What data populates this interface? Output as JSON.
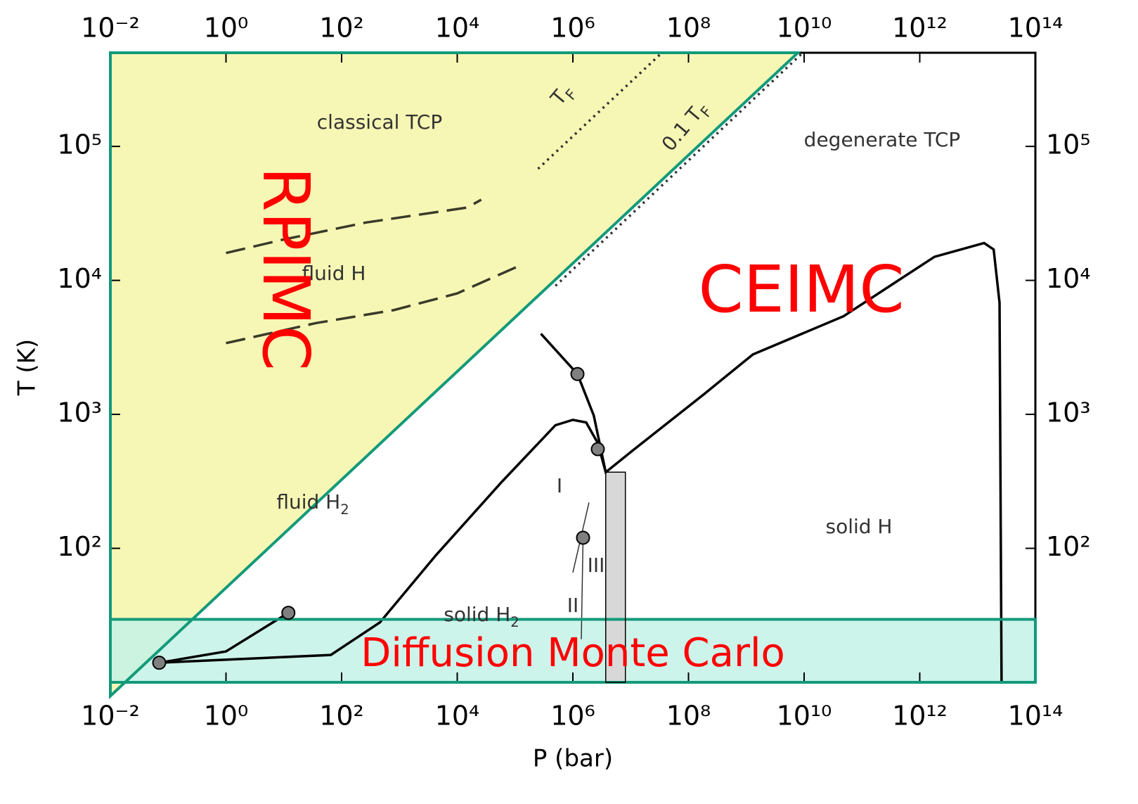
{
  "chart_data": {
    "type": "line",
    "xlabel": "P (bar)",
    "ylabel": "T (K)",
    "xscale": "log",
    "yscale": "log",
    "xlim": [
      0.01,
      100000000000000
    ],
    "ylim": [
      10,
      500000
    ],
    "xticks": [
      {
        "value": 0.01,
        "label": "10⁻²"
      },
      {
        "value": 1,
        "label": "10⁰"
      },
      {
        "value": 100,
        "label": "10²"
      },
      {
        "value": 10000,
        "label": "10⁴"
      },
      {
        "value": 1000000,
        "label": "10⁶"
      },
      {
        "value": 100000000,
        "label": "10⁸"
      },
      {
        "value": 10000000000,
        "label": "10¹⁰"
      },
      {
        "value": 1000000000000,
        "label": "10¹²"
      },
      {
        "value": 100000000000000,
        "label": "10¹⁴"
      }
    ],
    "yticks": [
      {
        "value": 100,
        "label": "10²"
      },
      {
        "value": 1000,
        "label": "10³"
      },
      {
        "value": 10000,
        "label": "10⁴"
      },
      {
        "value": 100000,
        "label": "10⁵"
      }
    ],
    "regions": [
      {
        "fill": "#f7f7b5",
        "stroke": "#129a7a",
        "x": [
          0.01,
          0.01,
          7800000000
        ],
        "y": [
          7.9,
          500000,
          500000
        ]
      },
      {
        "fill": "#c4f2e6",
        "stroke": "#129a7a",
        "x": [
          0.01,
          100000000000000,
          100000000000000,
          0.01
        ],
        "y": [
          10,
          10,
          29.5,
          29.5
        ]
      },
      {
        "fill": "#d8d8d8",
        "stroke": "#000000",
        "x": [
          3700000,
          8100000,
          8100000,
          3700000
        ],
        "y": [
          10,
          10,
          370,
          370
        ]
      }
    ],
    "series": [
      {
        "style": "solid",
        "color": "#000000",
        "x": [
          0.07,
          1,
          12
        ],
        "y": [
          14,
          17,
          33
        ]
      },
      {
        "style": "solid",
        "color": "#000000",
        "x": [
          0.07,
          65,
          460,
          4300,
          60000,
          500000,
          1000000,
          1700000,
          2700000,
          3700000,
          11000000,
          180000000,
          1300000000,
          48000000000,
          1800000000000,
          13000000000000,
          19000000000000,
          24000000000000,
          26000000000000
        ],
        "y": [
          14,
          16,
          28,
          89,
          316,
          830,
          910,
          870,
          610,
          370,
          540,
          1400,
          2800,
          5400,
          15000,
          19000,
          17000,
          6800,
          10
        ]
      },
      {
        "style": "solid",
        "color": "#000000",
        "x": [
          280000,
          1200000,
          2300000,
          3700000
        ],
        "y": [
          4000,
          2000,
          980,
          370
        ]
      },
      {
        "style": "dashed",
        "color": "#3a3a2a",
        "x": [
          1,
          9,
          260,
          15000,
          26000
        ],
        "y": [
          16000,
          20000,
          27000,
          35000,
          40000
        ]
      },
      {
        "style": "dashed",
        "color": "#3a3a2a",
        "x": [
          1,
          36,
          800,
          10000,
          107000
        ],
        "y": [
          3400,
          4800,
          6000,
          8000,
          12600
        ]
      },
      {
        "style": "dotted",
        "color": "#333333",
        "x": [
          250000,
          33000000
        ],
        "y": [
          68000,
          490000
        ]
      },
      {
        "style": "dotted",
        "color": "#333333",
        "x": [
          500000,
          9000000000
        ],
        "y": [
          9100,
          490000
        ]
      },
      {
        "style": "thin",
        "color": "#333333",
        "x": [
          1900000,
          1000000
        ],
        "y": [
          220,
          66
        ]
      },
      {
        "style": "thin",
        "color": "#333333",
        "x": [
          1500000,
          1400000
        ],
        "y": [
          120,
          21
        ]
      }
    ],
    "markers": {
      "color": "#808080",
      "x": [
        0.07,
        12,
        1200000,
        2700000,
        1500000
      ],
      "y": [
        14,
        33,
        2000,
        550,
        120
      ]
    },
    "annotations": [
      {
        "text": "classical TCP"
      },
      {
        "text": "degenerate TCP"
      },
      {
        "text": "fluid H"
      },
      {
        "text": "fluid H",
        "sub": "2"
      },
      {
        "text": "solid H"
      },
      {
        "text": "solid H",
        "sub": "2"
      },
      {
        "text": "I"
      },
      {
        "text": "II"
      },
      {
        "text": "III"
      },
      {
        "text": "T",
        "sub": "F"
      },
      {
        "text": "0.1 T",
        "sub": "F"
      },
      {
        "text": "RPIMC"
      },
      {
        "text": "CEIMC"
      },
      {
        "text": "Diffusion Monte Carlo"
      }
    ]
  }
}
